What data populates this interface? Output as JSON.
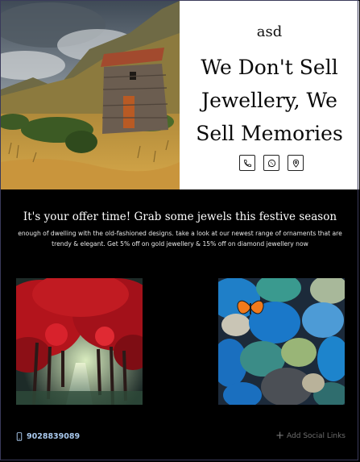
{
  "hero": {
    "brand": "asd",
    "headline": "We Don't Sell Jewellery, We Sell Memories",
    "contact_icons": [
      "phone-icon",
      "whatsapp-icon",
      "location-pin-icon"
    ]
  },
  "offer": {
    "title": "It's your offer time! Grab some jewels this festive season",
    "text": "enough of dwelling with the old-fashioned designs. take a look at our newest range of ornaments that are trendy & elegant. Get 5% off on gold jewellery & 15% off on diamond jewellery now"
  },
  "gallery": {
    "images": [
      "red-tree-avenue-image",
      "colorful-pebbles-butterfly-image"
    ]
  },
  "footer": {
    "phone": "9028839089",
    "social_label": "Add Social Links"
  },
  "colors": {
    "background": "#000000",
    "phone_text": "#a9c9ee",
    "social_text": "#6f6f6f"
  }
}
